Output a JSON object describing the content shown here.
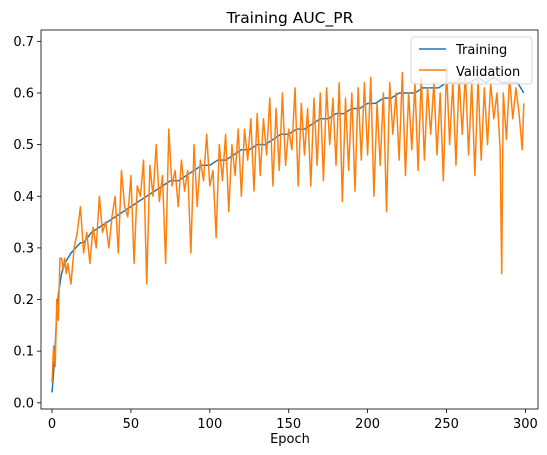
{
  "chart_data": {
    "type": "line",
    "title": "Training AUC_PR",
    "xlabel": "Epoch",
    "ylabel": "",
    "xlim": [
      -7,
      308
    ],
    "ylim": [
      -0.012,
      0.722
    ],
    "xticks": [
      0,
      50,
      100,
      150,
      200,
      250,
      300
    ],
    "yticks": [
      0.0,
      0.1,
      0.2,
      0.3,
      0.4,
      0.5,
      0.6,
      0.7
    ],
    "ytick_labels": [
      "0.0",
      "0.1",
      "0.2",
      "0.3",
      "0.4",
      "0.5",
      "0.6",
      "0.7"
    ],
    "xtick_labels": [
      "0",
      "50",
      "100",
      "150",
      "200",
      "250",
      "300"
    ],
    "grid": false,
    "legend_position": "top-right",
    "colors": {
      "Training": "#1f77b4",
      "Validation": "#ff7f0e"
    },
    "series": [
      {
        "name": "Training",
        "x": [
          0,
          1,
          2,
          3,
          4,
          5,
          6,
          8,
          10,
          12,
          15,
          18,
          20,
          25,
          30,
          35,
          40,
          45,
          50,
          55,
          60,
          65,
          70,
          75,
          80,
          85,
          90,
          95,
          100,
          105,
          110,
          115,
          120,
          125,
          130,
          135,
          140,
          145,
          150,
          155,
          160,
          165,
          170,
          175,
          180,
          185,
          190,
          195,
          200,
          205,
          210,
          215,
          220,
          225,
          230,
          235,
          240,
          245,
          250,
          255,
          260,
          265,
          270,
          275,
          280,
          285,
          290,
          295,
          299
        ],
        "values": [
          0.02,
          0.06,
          0.11,
          0.17,
          0.21,
          0.23,
          0.25,
          0.27,
          0.28,
          0.29,
          0.3,
          0.31,
          0.31,
          0.33,
          0.34,
          0.35,
          0.36,
          0.37,
          0.38,
          0.39,
          0.4,
          0.41,
          0.42,
          0.43,
          0.43,
          0.44,
          0.45,
          0.46,
          0.46,
          0.47,
          0.47,
          0.48,
          0.49,
          0.49,
          0.5,
          0.5,
          0.51,
          0.52,
          0.52,
          0.53,
          0.53,
          0.54,
          0.55,
          0.55,
          0.56,
          0.56,
          0.57,
          0.57,
          0.58,
          0.58,
          0.59,
          0.59,
          0.6,
          0.6,
          0.6,
          0.61,
          0.61,
          0.61,
          0.62,
          0.62,
          0.62,
          0.62,
          0.63,
          0.62,
          0.63,
          0.62,
          0.62,
          0.62,
          0.6
        ]
      },
      {
        "name": "Validation",
        "x": [
          0,
          1,
          2,
          3,
          4,
          5,
          6,
          7,
          8,
          9,
          10,
          12,
          14,
          16,
          18,
          20,
          22,
          24,
          26,
          28,
          30,
          32,
          34,
          36,
          38,
          40,
          42,
          44,
          46,
          48,
          50,
          52,
          54,
          56,
          58,
          60,
          62,
          64,
          66,
          68,
          70,
          72,
          74,
          76,
          78,
          80,
          82,
          84,
          86,
          88,
          90,
          92,
          94,
          96,
          98,
          100,
          102,
          104,
          106,
          108,
          110,
          112,
          114,
          116,
          118,
          120,
          122,
          124,
          126,
          128,
          130,
          132,
          134,
          136,
          138,
          140,
          142,
          144,
          146,
          148,
          150,
          152,
          154,
          156,
          158,
          160,
          162,
          164,
          166,
          168,
          170,
          172,
          174,
          176,
          178,
          180,
          182,
          184,
          186,
          188,
          190,
          192,
          194,
          196,
          198,
          200,
          202,
          204,
          206,
          208,
          210,
          212,
          214,
          216,
          218,
          220,
          222,
          224,
          226,
          228,
          230,
          232,
          234,
          236,
          238,
          240,
          242,
          244,
          246,
          248,
          250,
          252,
          254,
          256,
          258,
          260,
          262,
          264,
          266,
          268,
          270,
          272,
          274,
          276,
          278,
          280,
          282,
          284,
          285,
          286,
          288,
          290,
          292,
          294,
          296,
          298,
          299
        ],
        "values": [
          0.04,
          0.11,
          0.07,
          0.2,
          0.16,
          0.28,
          0.28,
          0.26,
          0.28,
          0.25,
          0.27,
          0.23,
          0.3,
          0.33,
          0.38,
          0.29,
          0.33,
          0.27,
          0.34,
          0.3,
          0.4,
          0.33,
          0.35,
          0.3,
          0.36,
          0.4,
          0.29,
          0.45,
          0.38,
          0.36,
          0.44,
          0.27,
          0.42,
          0.4,
          0.47,
          0.23,
          0.46,
          0.4,
          0.5,
          0.39,
          0.44,
          0.27,
          0.53,
          0.42,
          0.45,
          0.38,
          0.47,
          0.41,
          0.45,
          0.29,
          0.5,
          0.38,
          0.47,
          0.43,
          0.52,
          0.42,
          0.45,
          0.32,
          0.5,
          0.43,
          0.52,
          0.37,
          0.5,
          0.44,
          0.53,
          0.4,
          0.53,
          0.47,
          0.55,
          0.41,
          0.56,
          0.44,
          0.55,
          0.48,
          0.59,
          0.42,
          0.57,
          0.45,
          0.6,
          0.46,
          0.53,
          0.49,
          0.61,
          0.42,
          0.58,
          0.48,
          0.57,
          0.42,
          0.59,
          0.46,
          0.6,
          0.43,
          0.61,
          0.5,
          0.59,
          0.46,
          0.62,
          0.39,
          0.59,
          0.45,
          0.6,
          0.41,
          0.61,
          0.47,
          0.62,
          0.48,
          0.63,
          0.4,
          0.58,
          0.46,
          0.6,
          0.37,
          0.62,
          0.52,
          0.6,
          0.47,
          0.64,
          0.44,
          0.6,
          0.49,
          0.62,
          0.45,
          0.63,
          0.47,
          0.61,
          0.52,
          0.62,
          0.48,
          0.6,
          0.43,
          0.65,
          0.5,
          0.62,
          0.46,
          0.63,
          0.52,
          0.64,
          0.48,
          0.62,
          0.44,
          0.63,
          0.47,
          0.61,
          0.5,
          0.62,
          0.55,
          0.6,
          0.49,
          0.25,
          0.6,
          0.51,
          0.63,
          0.55,
          0.61,
          0.56,
          0.49,
          0.58
        ]
      }
    ]
  }
}
